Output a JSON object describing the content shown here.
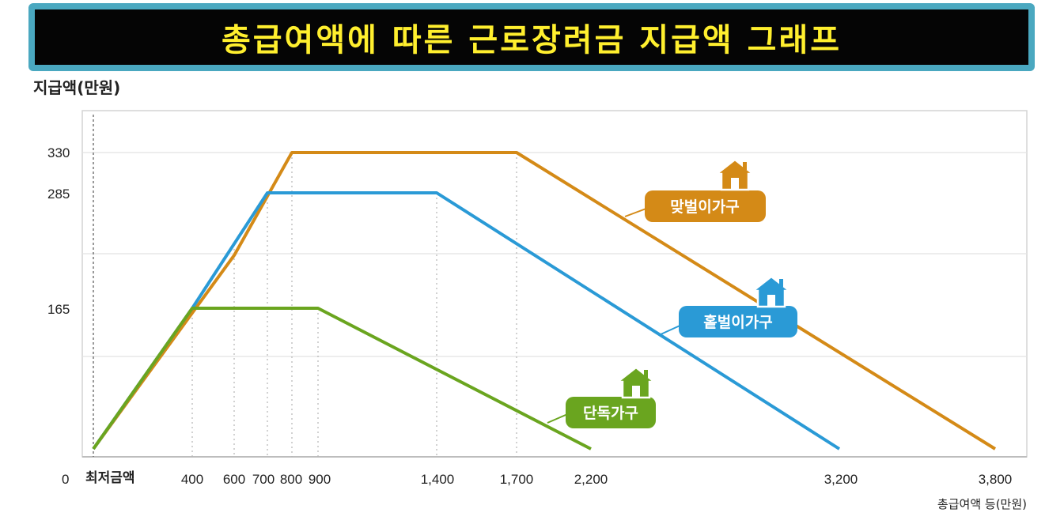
{
  "title": "총급여액에 따른 근로장려금 지급액 그래프",
  "colors": {
    "banner_border": "#4aa8c0",
    "banner_bg": "#050505",
    "title": "#ffef2e",
    "dual": "#d48a17",
    "single_earner": "#2a9ad6",
    "single": "#6aa51f"
  },
  "chart_data": {
    "type": "line",
    "title": "총급여액에 따른 근로장려금 지급액 그래프",
    "xlabel": "총급여액 등(만원)",
    "ylabel": "지급액(만원)",
    "x_ticks": [
      "0",
      "최저금액",
      "400",
      "600",
      "700",
      "800",
      "900",
      "1,400",
      "1,700",
      "2,200",
      "3,200",
      "3,800"
    ],
    "y_ticks": [
      "330",
      "285",
      "165"
    ],
    "ylim": [
      0,
      360
    ],
    "grid": true,
    "series": [
      {
        "name": "맞벌이가구",
        "color": "#d48a17",
        "icon": "house-icon",
        "x": [
          "최저금액",
          600,
          800,
          1700,
          3800
        ],
        "y": [
          0,
          220,
          330,
          330,
          0
        ]
      },
      {
        "name": "홑벌이가구",
        "color": "#2a9ad6",
        "icon": "house-icon",
        "x": [
          "최저금액",
          400,
          700,
          1400,
          3200
        ],
        "y": [
          0,
          165,
          285,
          285,
          0
        ]
      },
      {
        "name": "단독가구",
        "color": "#6aa51f",
        "icon": "house-icon",
        "x": [
          "최저금액",
          400,
          900,
          2200
        ],
        "y": [
          0,
          165,
          165,
          0
        ]
      }
    ]
  }
}
